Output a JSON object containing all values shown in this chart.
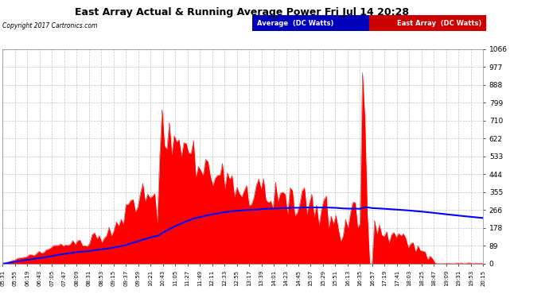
{
  "title": "East Array Actual & Running Average Power Fri Jul 14 20:28",
  "copyright": "Copyright 2017 Cartronics.com",
  "legend_avg": "Average  (DC Watts)",
  "legend_east": "East Array  (DC Watts)",
  "background_color": "#ffffff",
  "plot_bg_color": "#ffffff",
  "grid_color": "#aaaaaa",
  "fill_color": "#ff0000",
  "line_color": "#0000ff",
  "ylim": [
    0.0,
    1065.5
  ],
  "yticks": [
    0.0,
    88.8,
    177.6,
    266.4,
    355.2,
    444.0,
    532.8,
    621.6,
    710.3,
    799.1,
    887.9,
    976.7,
    1065.5
  ],
  "xtick_labels": [
    "05:31",
    "05:55",
    "06:19",
    "06:43",
    "07:05",
    "07:47",
    "08:09",
    "08:31",
    "08:53",
    "09:15",
    "09:37",
    "09:59",
    "10:21",
    "10:43",
    "11:05",
    "11:27",
    "11:49",
    "12:11",
    "12:33",
    "12:55",
    "13:17",
    "13:39",
    "14:01",
    "14:23",
    "14:45",
    "15:07",
    "15:29",
    "15:51",
    "16:13",
    "16:35",
    "16:57",
    "17:19",
    "17:41",
    "18:03",
    "18:25",
    "18:47",
    "19:09",
    "19:31",
    "19:53",
    "20:15"
  ]
}
